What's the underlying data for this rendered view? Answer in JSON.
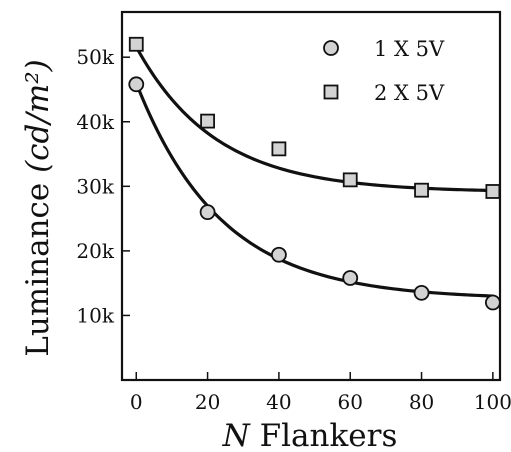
{
  "chart_data": {
    "type": "scatter",
    "title": "",
    "xlabel_italic": "N",
    "xlabel_rest": "Flankers",
    "ylabel_main": "Luminance",
    "ylabel_units": "(cd/m²)",
    "xlim": [
      -4,
      102
    ],
    "ylim": [
      0,
      57000
    ],
    "xticks": [
      0,
      20,
      40,
      60,
      80,
      100
    ],
    "xtick_labels": [
      "0",
      "20",
      "40",
      "60",
      "80",
      "100"
    ],
    "yticks": [
      10000,
      20000,
      30000,
      40000,
      50000
    ],
    "ytick_labels": [
      "10k",
      "20k",
      "30k",
      "40k",
      "50k"
    ],
    "grid": false,
    "legend_position": "top-right",
    "x": [
      0,
      20,
      40,
      60,
      80,
      100
    ],
    "series": [
      {
        "name": "1 X 5V",
        "marker": "circle",
        "values": [
          45800,
          26000,
          19400,
          15800,
          13500,
          12000
        ],
        "fit": {
          "type": "exponential",
          "a": 33500,
          "k": 0.042,
          "c": 12500
        }
      },
      {
        "name": "2 X 5V",
        "marker": "square",
        "values": [
          52000,
          40100,
          35800,
          31000,
          29400,
          29200
        ],
        "fit": {
          "type": "exponential",
          "a": 22500,
          "k": 0.045,
          "c": 29100
        }
      }
    ],
    "colors": {
      "marker_fill": "#d3d3d3",
      "line": "#111111",
      "axis": "#111111"
    }
  }
}
